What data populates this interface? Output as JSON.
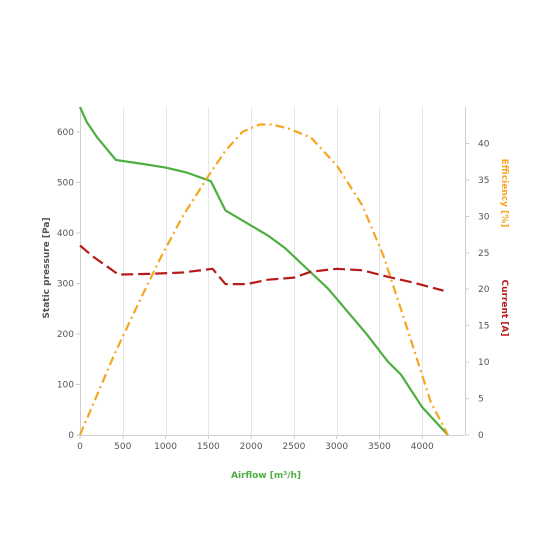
{
  "chart_data": {
    "type": "line",
    "xlabel": "Airflow [m³/h]",
    "xlim": [
      0,
      4500
    ],
    "x_ticks": [
      0,
      500,
      1000,
      1500,
      2000,
      2500,
      3000,
      3500,
      4000
    ],
    "x_tick_labels": [
      "0",
      "500",
      "1000",
      "1500",
      "2000",
      "2500",
      "3000",
      "3500",
      "4000"
    ],
    "grid": "vertical",
    "axes": {
      "left": {
        "label": "Static pressure [Pa]",
        "lim": [
          0,
          650
        ],
        "ticks": [
          0,
          100,
          200,
          300,
          400,
          500,
          600
        ],
        "tick_labels": [
          "0",
          "100",
          "200",
          "300",
          "400",
          "500",
          "600"
        ]
      },
      "right_inner": {
        "label": "Efficiency [%]",
        "lim": [
          0,
          45
        ],
        "ticks": [
          0,
          5,
          10,
          15,
          20,
          25,
          30,
          35,
          40
        ],
        "tick_labels": [
          "0",
          "5",
          "10",
          "15",
          "20",
          "25",
          "30",
          "35",
          "40"
        ]
      },
      "right_outer": {
        "label": "Current [A]"
      }
    },
    "series": [
      {
        "axis": "left",
        "color": "#4caf3f",
        "style": "solid",
        "x": [
          0,
          80,
          200,
          420,
          700,
          1000,
          1250,
          1530,
          1700,
          2000,
          2200,
          2400,
          2650,
          2900,
          3100,
          3350,
          3600,
          3750,
          4000,
          4300
        ],
        "y": [
          650,
          620,
          590,
          545,
          538,
          530,
          520,
          503,
          445,
          415,
          395,
          370,
          330,
          290,
          250,
          200,
          145,
          120,
          55,
          0
        ]
      },
      {
        "axis": "right_outer",
        "color": "#b71c1c",
        "style": "dashed",
        "x": [
          0,
          150,
          450,
          800,
          1200,
          1550,
          1700,
          1950,
          2200,
          2500,
          2700,
          3000,
          3300,
          3600,
          3900,
          4250
        ],
        "y": [
          26,
          24.5,
          22,
          22.1,
          22.3,
          22.8,
          20.7,
          20.7,
          21.3,
          21.6,
          22.4,
          22.8,
          22.6,
          21.7,
          20.9,
          19.8
        ]
      },
      {
        "axis": "right_inner",
        "color": "#f5a623",
        "style": "dash-dot",
        "x": [
          0,
          400,
          700,
          950,
          1200,
          1500,
          1700,
          1900,
          2100,
          2250,
          2450,
          2700,
          3000,
          3300,
          3550,
          3800,
          4100,
          4300
        ],
        "y": [
          0,
          11,
          18.5,
          24.5,
          30,
          35.5,
          39,
          41.6,
          42.6,
          42.6,
          42,
          40.8,
          37,
          31.5,
          24.5,
          15.5,
          4.5,
          0
        ]
      }
    ]
  },
  "colors": {
    "pressure_axis_title": "#555555",
    "airflow_title": "#4caf3f",
    "efficiency_title": "#f5a623",
    "current_title": "#b71c1c",
    "tick_text": "#555555"
  }
}
